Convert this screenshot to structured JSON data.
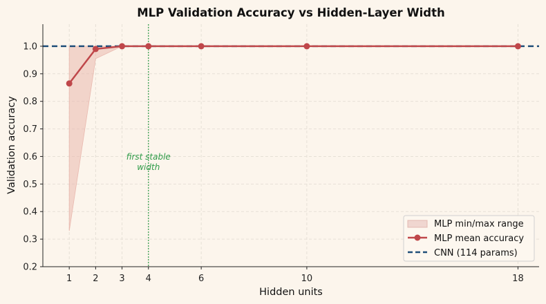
{
  "chart_data": {
    "type": "line",
    "title": "MLP Validation Accuracy vs Hidden-Layer Width",
    "xlabel": "Hidden units",
    "ylabel": "Validation accuracy",
    "x": [
      1,
      2,
      3,
      4,
      6,
      10,
      18
    ],
    "xticks": [
      "1",
      "2",
      "3",
      "4",
      "6",
      "10",
      "18"
    ],
    "xlim": [
      0,
      18.8
    ],
    "ylim": [
      0.2,
      1.08
    ],
    "yticks": [
      "0.2",
      "0.3",
      "0.4",
      "0.5",
      "0.6",
      "0.7",
      "0.8",
      "0.9",
      "1.0"
    ],
    "grid": true,
    "legend_position": "bottom-right",
    "series": [
      {
        "name": "MLP min/max range",
        "kind": "band",
        "min": [
          0.33,
          0.955,
          1.0,
          1.0,
          1.0,
          1.0,
          1.0
        ],
        "max": [
          1.0,
          1.0,
          1.0,
          1.0,
          1.0,
          1.0,
          1.0
        ],
        "color": "#e9b8ae"
      },
      {
        "name": "MLP mean accuracy",
        "kind": "line",
        "values": [
          0.865,
          0.99,
          1.0,
          1.0,
          1.0,
          1.0,
          1.0
        ],
        "color": "#bf474a"
      },
      {
        "name": "CNN (114 params)",
        "kind": "hline",
        "value": 1.0,
        "color": "#1f4e79"
      }
    ],
    "vline": {
      "x": 4,
      "label_line1": "first stable",
      "label_line2": "width",
      "color": "#2e9b48"
    }
  }
}
